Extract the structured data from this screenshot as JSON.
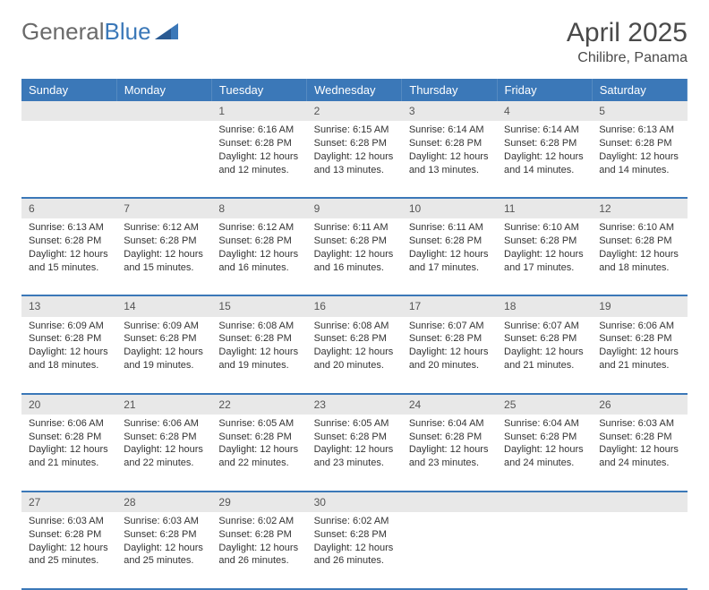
{
  "brand": {
    "part1": "General",
    "part2": "Blue"
  },
  "title": "April 2025",
  "location": "Chilibre, Panama",
  "colors": {
    "header_bg": "#3b78b8",
    "header_text": "#ffffff",
    "daynum_bg": "#e8e8e8",
    "daynum_text": "#555555",
    "body_text": "#333333",
    "rule": "#3b78b8",
    "page_bg": "#ffffff"
  },
  "typography": {
    "title_size_pt": 30,
    "location_size_pt": 16,
    "dayname_size_pt": 13,
    "daynum_size_pt": 12,
    "cell_size_pt": 11
  },
  "day_names": [
    "Sunday",
    "Monday",
    "Tuesday",
    "Wednesday",
    "Thursday",
    "Friday",
    "Saturday"
  ],
  "weeks": [
    [
      null,
      null,
      {
        "n": "1",
        "sunrise": "Sunrise: 6:16 AM",
        "sunset": "Sunset: 6:28 PM",
        "day1": "Daylight: 12 hours",
        "day2": "and 12 minutes."
      },
      {
        "n": "2",
        "sunrise": "Sunrise: 6:15 AM",
        "sunset": "Sunset: 6:28 PM",
        "day1": "Daylight: 12 hours",
        "day2": "and 13 minutes."
      },
      {
        "n": "3",
        "sunrise": "Sunrise: 6:14 AM",
        "sunset": "Sunset: 6:28 PM",
        "day1": "Daylight: 12 hours",
        "day2": "and 13 minutes."
      },
      {
        "n": "4",
        "sunrise": "Sunrise: 6:14 AM",
        "sunset": "Sunset: 6:28 PM",
        "day1": "Daylight: 12 hours",
        "day2": "and 14 minutes."
      },
      {
        "n": "5",
        "sunrise": "Sunrise: 6:13 AM",
        "sunset": "Sunset: 6:28 PM",
        "day1": "Daylight: 12 hours",
        "day2": "and 14 minutes."
      }
    ],
    [
      {
        "n": "6",
        "sunrise": "Sunrise: 6:13 AM",
        "sunset": "Sunset: 6:28 PM",
        "day1": "Daylight: 12 hours",
        "day2": "and 15 minutes."
      },
      {
        "n": "7",
        "sunrise": "Sunrise: 6:12 AM",
        "sunset": "Sunset: 6:28 PM",
        "day1": "Daylight: 12 hours",
        "day2": "and 15 minutes."
      },
      {
        "n": "8",
        "sunrise": "Sunrise: 6:12 AM",
        "sunset": "Sunset: 6:28 PM",
        "day1": "Daylight: 12 hours",
        "day2": "and 16 minutes."
      },
      {
        "n": "9",
        "sunrise": "Sunrise: 6:11 AM",
        "sunset": "Sunset: 6:28 PM",
        "day1": "Daylight: 12 hours",
        "day2": "and 16 minutes."
      },
      {
        "n": "10",
        "sunrise": "Sunrise: 6:11 AM",
        "sunset": "Sunset: 6:28 PM",
        "day1": "Daylight: 12 hours",
        "day2": "and 17 minutes."
      },
      {
        "n": "11",
        "sunrise": "Sunrise: 6:10 AM",
        "sunset": "Sunset: 6:28 PM",
        "day1": "Daylight: 12 hours",
        "day2": "and 17 minutes."
      },
      {
        "n": "12",
        "sunrise": "Sunrise: 6:10 AM",
        "sunset": "Sunset: 6:28 PM",
        "day1": "Daylight: 12 hours",
        "day2": "and 18 minutes."
      }
    ],
    [
      {
        "n": "13",
        "sunrise": "Sunrise: 6:09 AM",
        "sunset": "Sunset: 6:28 PM",
        "day1": "Daylight: 12 hours",
        "day2": "and 18 minutes."
      },
      {
        "n": "14",
        "sunrise": "Sunrise: 6:09 AM",
        "sunset": "Sunset: 6:28 PM",
        "day1": "Daylight: 12 hours",
        "day2": "and 19 minutes."
      },
      {
        "n": "15",
        "sunrise": "Sunrise: 6:08 AM",
        "sunset": "Sunset: 6:28 PM",
        "day1": "Daylight: 12 hours",
        "day2": "and 19 minutes."
      },
      {
        "n": "16",
        "sunrise": "Sunrise: 6:08 AM",
        "sunset": "Sunset: 6:28 PM",
        "day1": "Daylight: 12 hours",
        "day2": "and 20 minutes."
      },
      {
        "n": "17",
        "sunrise": "Sunrise: 6:07 AM",
        "sunset": "Sunset: 6:28 PM",
        "day1": "Daylight: 12 hours",
        "day2": "and 20 minutes."
      },
      {
        "n": "18",
        "sunrise": "Sunrise: 6:07 AM",
        "sunset": "Sunset: 6:28 PM",
        "day1": "Daylight: 12 hours",
        "day2": "and 21 minutes."
      },
      {
        "n": "19",
        "sunrise": "Sunrise: 6:06 AM",
        "sunset": "Sunset: 6:28 PM",
        "day1": "Daylight: 12 hours",
        "day2": "and 21 minutes."
      }
    ],
    [
      {
        "n": "20",
        "sunrise": "Sunrise: 6:06 AM",
        "sunset": "Sunset: 6:28 PM",
        "day1": "Daylight: 12 hours",
        "day2": "and 21 minutes."
      },
      {
        "n": "21",
        "sunrise": "Sunrise: 6:06 AM",
        "sunset": "Sunset: 6:28 PM",
        "day1": "Daylight: 12 hours",
        "day2": "and 22 minutes."
      },
      {
        "n": "22",
        "sunrise": "Sunrise: 6:05 AM",
        "sunset": "Sunset: 6:28 PM",
        "day1": "Daylight: 12 hours",
        "day2": "and 22 minutes."
      },
      {
        "n": "23",
        "sunrise": "Sunrise: 6:05 AM",
        "sunset": "Sunset: 6:28 PM",
        "day1": "Daylight: 12 hours",
        "day2": "and 23 minutes."
      },
      {
        "n": "24",
        "sunrise": "Sunrise: 6:04 AM",
        "sunset": "Sunset: 6:28 PM",
        "day1": "Daylight: 12 hours",
        "day2": "and 23 minutes."
      },
      {
        "n": "25",
        "sunrise": "Sunrise: 6:04 AM",
        "sunset": "Sunset: 6:28 PM",
        "day1": "Daylight: 12 hours",
        "day2": "and 24 minutes."
      },
      {
        "n": "26",
        "sunrise": "Sunrise: 6:03 AM",
        "sunset": "Sunset: 6:28 PM",
        "day1": "Daylight: 12 hours",
        "day2": "and 24 minutes."
      }
    ],
    [
      {
        "n": "27",
        "sunrise": "Sunrise: 6:03 AM",
        "sunset": "Sunset: 6:28 PM",
        "day1": "Daylight: 12 hours",
        "day2": "and 25 minutes."
      },
      {
        "n": "28",
        "sunrise": "Sunrise: 6:03 AM",
        "sunset": "Sunset: 6:28 PM",
        "day1": "Daylight: 12 hours",
        "day2": "and 25 minutes."
      },
      {
        "n": "29",
        "sunrise": "Sunrise: 6:02 AM",
        "sunset": "Sunset: 6:28 PM",
        "day1": "Daylight: 12 hours",
        "day2": "and 26 minutes."
      },
      {
        "n": "30",
        "sunrise": "Sunrise: 6:02 AM",
        "sunset": "Sunset: 6:28 PM",
        "day1": "Daylight: 12 hours",
        "day2": "and 26 minutes."
      },
      null,
      null,
      null
    ]
  ]
}
